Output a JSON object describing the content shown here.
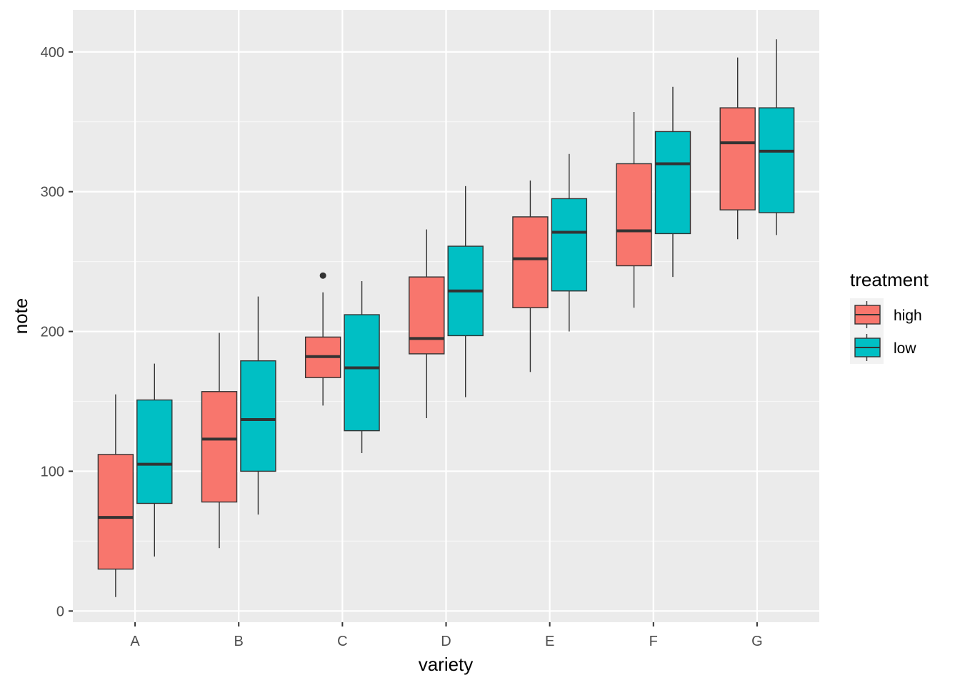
{
  "chart_data": {
    "type": "boxplot",
    "xlabel": "variety",
    "ylabel": "note",
    "categories": [
      "A",
      "B",
      "C",
      "D",
      "E",
      "F",
      "G"
    ],
    "ylim": [
      -8,
      430
    ],
    "yticks": [
      0,
      100,
      200,
      300,
      400
    ],
    "grid": true,
    "legend": {
      "title": "treatment",
      "placement": "right"
    },
    "series": [
      {
        "name": "high",
        "color": "#F8766D",
        "boxes": [
          {
            "category": "A",
            "min": 10,
            "q1": 30,
            "median": 67,
            "q3": 112,
            "max": 155,
            "outliers": []
          },
          {
            "category": "B",
            "min": 45,
            "q1": 78,
            "median": 123,
            "q3": 157,
            "max": 199,
            "outliers": []
          },
          {
            "category": "C",
            "min": 147,
            "q1": 167,
            "median": 182,
            "q3": 196,
            "max": 228,
            "outliers": [
              240
            ]
          },
          {
            "category": "D",
            "min": 138,
            "q1": 184,
            "median": 195,
            "q3": 239,
            "max": 273,
            "outliers": []
          },
          {
            "category": "E",
            "min": 171,
            "q1": 217,
            "median": 252,
            "q3": 282,
            "max": 308,
            "outliers": []
          },
          {
            "category": "F",
            "min": 217,
            "q1": 247,
            "median": 272,
            "q3": 320,
            "max": 357,
            "outliers": []
          },
          {
            "category": "G",
            "min": 266,
            "q1": 287,
            "median": 335,
            "q3": 360,
            "max": 396,
            "outliers": []
          }
        ]
      },
      {
        "name": "low",
        "color": "#00BFC4",
        "boxes": [
          {
            "category": "A",
            "min": 39,
            "q1": 77,
            "median": 105,
            "q3": 151,
            "max": 177,
            "outliers": []
          },
          {
            "category": "B",
            "min": 69,
            "q1": 100,
            "median": 137,
            "q3": 179,
            "max": 225,
            "outliers": []
          },
          {
            "category": "C",
            "min": 113,
            "q1": 129,
            "median": 174,
            "q3": 212,
            "max": 236,
            "outliers": []
          },
          {
            "category": "D",
            "min": 153,
            "q1": 197,
            "median": 229,
            "q3": 261,
            "max": 304,
            "outliers": []
          },
          {
            "category": "E",
            "min": 200,
            "q1": 229,
            "median": 271,
            "q3": 295,
            "max": 327,
            "outliers": []
          },
          {
            "category": "F",
            "min": 239,
            "q1": 270,
            "median": 320,
            "q3": 343,
            "max": 375,
            "outliers": []
          },
          {
            "category": "G",
            "min": 269,
            "q1": 285,
            "median": 329,
            "q3": 360,
            "max": 409,
            "outliers": []
          }
        ]
      }
    ]
  }
}
